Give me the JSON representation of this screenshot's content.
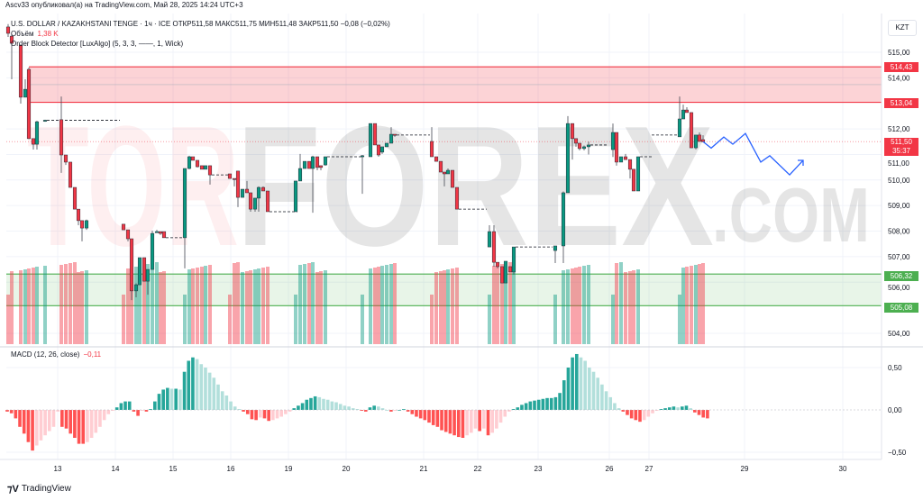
{
  "header": {
    "published": "Ascv33 опубликовал(а) на TradingView.com, Май 28, 2025 14:24 UTC+3"
  },
  "legend": {
    "symbol_line": "U.S. DOLLAR / KAZAKHSTANI TENGE · 1ч · ICE   ОТКР511,58  МАКС511,75  МИН511,48  ЗАКР511,50  −0,08 (−0,02%)",
    "volume_label": "Объём",
    "volume_value": "1,38 K",
    "indicator": "Order Block Detector [LuxAlgo] (5, 3, 3, ——, 1, Wick)"
  },
  "macd_legend": {
    "label": "MACD (12, 26, close)",
    "value": "−0,11"
  },
  "currency_button": "KZT",
  "watermark": "TORFOREX.COM",
  "footer": {
    "brand": "TradingView"
  },
  "colors": {
    "up": "#089981",
    "down": "#f23645",
    "bear_zone": "#f23645",
    "bull_zone": "#4caf50",
    "projection": "#2962ff"
  },
  "chart_data": [
    {
      "type": "candlestick",
      "title": "U.S. DOLLAR / KAZAKHSTANI TENGE",
      "timeframe": "1ч",
      "ylim": [
        503.6,
        516.2
      ],
      "y_ticks": [
        "515,00",
        "514,00",
        "512,00",
        "511,00",
        "510,00",
        "509,00",
        "508,00",
        "507,00",
        "506,00",
        "504,00"
      ],
      "y_tick_values": [
        515,
        514,
        512,
        511,
        510,
        509,
        508,
        507,
        506,
        504
      ],
      "x_tick_labels": [
        "13",
        "14",
        "15",
        "16",
        "19",
        "20",
        "21",
        "22",
        "23",
        "26",
        "27",
        "29",
        "30"
      ],
      "grid": true,
      "ohlc": [
        [
          515.99,
          516.1,
          515.6,
          515.74
        ],
        [
          515.63,
          515.7,
          513.94,
          515.35
        ],
        [
          515.28,
          515.3,
          512.99,
          513.24
        ],
        [
          513.24,
          513.94,
          513.24,
          513.55
        ],
        [
          514.33,
          514.4,
          511.6,
          511.62
        ],
        [
          511.62,
          511.62,
          511.19,
          511.4
        ],
        [
          511.4,
          512.32,
          511.19,
          512.28
        ],
        [
          512.3,
          512.36,
          512.28,
          512.34
        ],
        [
          512.36,
          513.27,
          510.28,
          510.98
        ],
        [
          510.98,
          510.98,
          510.59,
          510.7
        ],
        [
          510.7,
          510.7,
          509.71,
          509.71
        ],
        [
          509.71,
          509.71,
          508.86,
          508.86
        ],
        [
          508.86,
          508.86,
          508.23,
          508.41
        ],
        [
          508.41,
          508.41,
          507.6,
          508.12
        ],
        [
          508.12,
          508.45,
          508.05,
          508.41
        ],
        [
          508.27,
          508.27,
          508.05,
          508.05
        ],
        [
          508.05,
          508.05,
          507.6,
          507.7
        ],
        [
          507.7,
          507.7,
          505.3,
          505.66
        ],
        [
          505.66,
          505.95,
          505.41,
          505.9
        ],
        [
          505.9,
          506.96,
          505.9,
          506.96
        ],
        [
          506.96,
          506.96,
          506.04,
          506.04
        ],
        [
          506.04,
          506.5,
          505.51,
          506.5
        ],
        [
          506.5,
          508.02,
          506.5,
          507.91
        ],
        [
          507.95,
          508.05,
          507.95,
          507.98
        ],
        [
          507.98,
          507.98,
          507.85,
          507.91
        ],
        [
          507.98,
          507.98,
          507.74,
          507.74
        ],
        [
          507.74,
          510.45,
          506.54,
          510.45
        ],
        [
          510.45,
          510.95,
          510.42,
          510.91
        ],
        [
          510.91,
          510.91,
          510.77,
          510.77
        ],
        [
          510.77,
          510.77,
          510.49,
          510.52
        ],
        [
          510.56,
          510.56,
          510.42,
          510.42
        ],
        [
          510.42,
          510.56,
          510.42,
          510.56
        ],
        [
          510.56,
          510.56,
          509.82,
          510.2
        ],
        [
          510.24,
          510.24,
          510.06,
          510.06
        ],
        [
          510.06,
          510.06,
          509.75,
          510.03
        ],
        [
          510.35,
          510.35,
          508.94,
          509.32
        ],
        [
          509.32,
          509.64,
          509.32,
          509.64
        ],
        [
          509.64,
          509.96,
          509.5,
          509.5
        ],
        [
          509.5,
          509.5,
          508.76,
          508.86
        ],
        [
          508.86,
          509.29,
          508.76,
          509.29
        ],
        [
          509.29,
          509.75,
          508.76,
          509.71
        ],
        [
          509.71,
          509.75,
          509.57,
          509.57
        ],
        [
          509.57,
          509.57,
          508.76,
          508.76
        ],
        [
          508.76,
          509.96,
          508.76,
          509.96
        ],
        [
          509.96,
          511.02,
          509.96,
          510.45
        ],
        [
          510.45,
          510.73,
          510.45,
          510.73
        ],
        [
          510.73,
          510.73,
          510.45,
          510.45
        ],
        [
          510.45,
          510.95,
          508.72,
          510.91
        ],
        [
          510.91,
          510.91,
          510.38,
          510.49
        ],
        [
          510.56,
          510.56,
          510.38,
          510.49
        ],
        [
          510.59,
          510.91,
          510.56,
          510.91
        ],
        [
          510.91,
          510.98,
          509.46,
          510.95
        ],
        [
          510.91,
          512.21,
          510.91,
          512.21
        ],
        [
          512.21,
          512.21,
          511.37,
          511.37
        ],
        [
          511.37,
          511.37,
          510.91,
          510.98
        ],
        [
          511.09,
          511.3,
          511.02,
          511.3
        ],
        [
          511.3,
          511.44,
          511.3,
          511.44
        ],
        [
          511.44,
          512.07,
          511.44,
          511.79
        ],
        [
          511.79,
          511.79,
          511.69,
          511.76
        ],
        [
          511.51,
          512.07,
          510.91,
          510.91
        ],
        [
          510.91,
          510.91,
          510.73,
          510.73
        ],
        [
          510.73,
          510.73,
          510.31,
          510.31
        ],
        [
          510.31,
          510.31,
          509.75,
          510.24
        ],
        [
          510.24,
          510.45,
          510.24,
          510.38
        ],
        [
          510.38,
          510.38,
          509.71,
          509.71
        ],
        [
          509.71,
          509.71,
          508.86,
          508.86
        ],
        [
          507.38,
          508.23,
          507.38,
          507.98
        ],
        [
          507.98,
          508.23,
          506.61,
          506.78
        ],
        [
          506.78,
          506.78,
          506.54,
          506.61
        ],
        [
          506.61,
          506.61,
          505.97,
          505.97
        ],
        [
          505.97,
          506.82,
          505.97,
          506.82
        ],
        [
          506.61,
          506.61,
          506.4,
          506.4
        ],
        [
          506.4,
          507.38,
          506.3,
          507.38
        ],
        [
          507.24,
          507.42,
          506.75,
          507.42
        ],
        [
          507.42,
          509.55,
          506.75,
          509.5
        ],
        [
          509.5,
          512.5,
          509.5,
          512.21
        ],
        [
          512.21,
          512.21,
          510.8,
          511.62
        ],
        [
          511.62,
          511.62,
          511.3,
          511.44
        ],
        [
          511.44,
          511.44,
          511.16,
          511.23
        ],
        [
          511.23,
          511.35,
          511.16,
          511.3
        ],
        [
          511.3,
          511.5,
          511.0,
          511.37
        ],
        [
          511.19,
          512.21,
          510.9,
          511.86
        ],
        [
          511.86,
          511.86,
          510.56,
          510.7
        ],
        [
          510.7,
          510.91,
          510.7,
          510.91
        ],
        [
          510.91,
          511.02,
          510.8,
          510.8
        ],
        [
          510.8,
          510.8,
          510.06,
          510.42
        ],
        [
          510.42,
          510.42,
          509.57,
          509.57
        ],
        [
          509.57,
          510.91,
          509.57,
          510.91
        ],
        [
          511.69,
          513.27,
          511.69,
          512.39
        ],
        [
          512.39,
          512.95,
          512.39,
          512.74
        ],
        [
          512.74,
          512.85,
          512.64,
          512.64
        ],
        [
          512.64,
          512.64,
          511.26,
          511.26
        ],
        [
          511.26,
          511.76,
          511.2,
          511.76
        ],
        [
          511.76,
          511.86,
          511.51,
          511.51
        ],
        [
          511.58,
          511.75,
          511.48,
          511.5
        ]
      ],
      "zones": [
        {
          "kind": "bearish order block",
          "top": 514.43,
          "bottom": 513.04,
          "top_label": "514,43",
          "bottom_label": "513,04"
        },
        {
          "kind": "bullish order block",
          "top": 506.32,
          "bottom": 505.08,
          "top_label": "506,32",
          "bottom_label": "505,08"
        }
      ],
      "last_price": {
        "value": 511.5,
        "label": "511,50",
        "countdown": "35:37"
      },
      "projection_path_prices": [
        511.5,
        511.25,
        511.68,
        511.4,
        511.82,
        510.7,
        510.95,
        510.2,
        510.77
      ]
    },
    {
      "type": "bar",
      "title": "MACD (12, 26, close)",
      "ylim": [
        -0.7,
        0.8
      ],
      "y_ticks": [
        "0,50",
        "0,00",
        "−0,50"
      ],
      "y_tick_values": [
        0.5,
        0,
        -0.5
      ],
      "histogram": [
        -0.02,
        -0.04,
        -0.1,
        -0.2,
        -0.28,
        -0.38,
        -0.48,
        -0.42,
        -0.36,
        -0.3,
        -0.25,
        -0.2,
        -0.02,
        -0.2,
        -0.22,
        -0.28,
        -0.33,
        -0.4,
        -0.4,
        -0.38,
        -0.33,
        -0.27,
        -0.2,
        -0.12,
        -0.05,
        -0.01,
        0.03,
        0.08,
        0.1,
        0.1,
        -0.02,
        -0.07,
        -0.01,
        -0.02,
        0.01,
        0.1,
        0.19,
        0.24,
        0.26,
        0.25,
        0.25,
        0.24,
        0.45,
        0.58,
        0.62,
        0.6,
        0.54,
        0.5,
        0.44,
        0.38,
        0.3,
        0.22,
        0.17,
        0.1,
        0.04,
        0.01,
        -0.02,
        -0.05,
        -0.11,
        -0.12,
        -0.09,
        -0.1,
        -0.13,
        -0.12,
        -0.1,
        -0.08,
        -0.05,
        -0.02,
        0.02,
        0.05,
        0.08,
        0.12,
        0.14,
        0.16,
        0.15,
        0.13,
        0.12,
        0.1,
        0.09,
        0.07,
        0.05,
        0.04,
        0.02,
        0.01,
        -0.01,
        -0.02,
        0.03,
        0.05,
        0.04,
        0.02,
        0.0,
        -0.02,
        -0.01,
        0.0,
        0.01,
        -0.02,
        -0.05,
        -0.08,
        -0.1,
        -0.12,
        -0.15,
        -0.18,
        -0.2,
        -0.24,
        -0.26,
        -0.28,
        -0.3,
        -0.32,
        -0.33,
        -0.3,
        -0.27,
        -0.22,
        -0.25,
        -0.22,
        -0.3,
        -0.27,
        -0.22,
        -0.15,
        -0.08,
        -0.02,
        0.01,
        0.03,
        0.06,
        0.08,
        0.1,
        0.11,
        0.12,
        0.13,
        0.14,
        0.14,
        0.15,
        0.2,
        0.35,
        0.5,
        0.62,
        0.66,
        0.62,
        0.58,
        0.5,
        0.45,
        0.38,
        0.3,
        0.22,
        0.15,
        0.08,
        0.02,
        -0.02,
        -0.06,
        -0.1,
        -0.12,
        -0.14,
        -0.12,
        -0.08,
        -0.04,
        -0.01,
        0.01,
        0.02,
        0.03,
        0.04,
        0.03,
        0.04,
        0.05,
        0.02,
        -0.03,
        -0.06,
        -0.09,
        -0.1
      ]
    }
  ]
}
